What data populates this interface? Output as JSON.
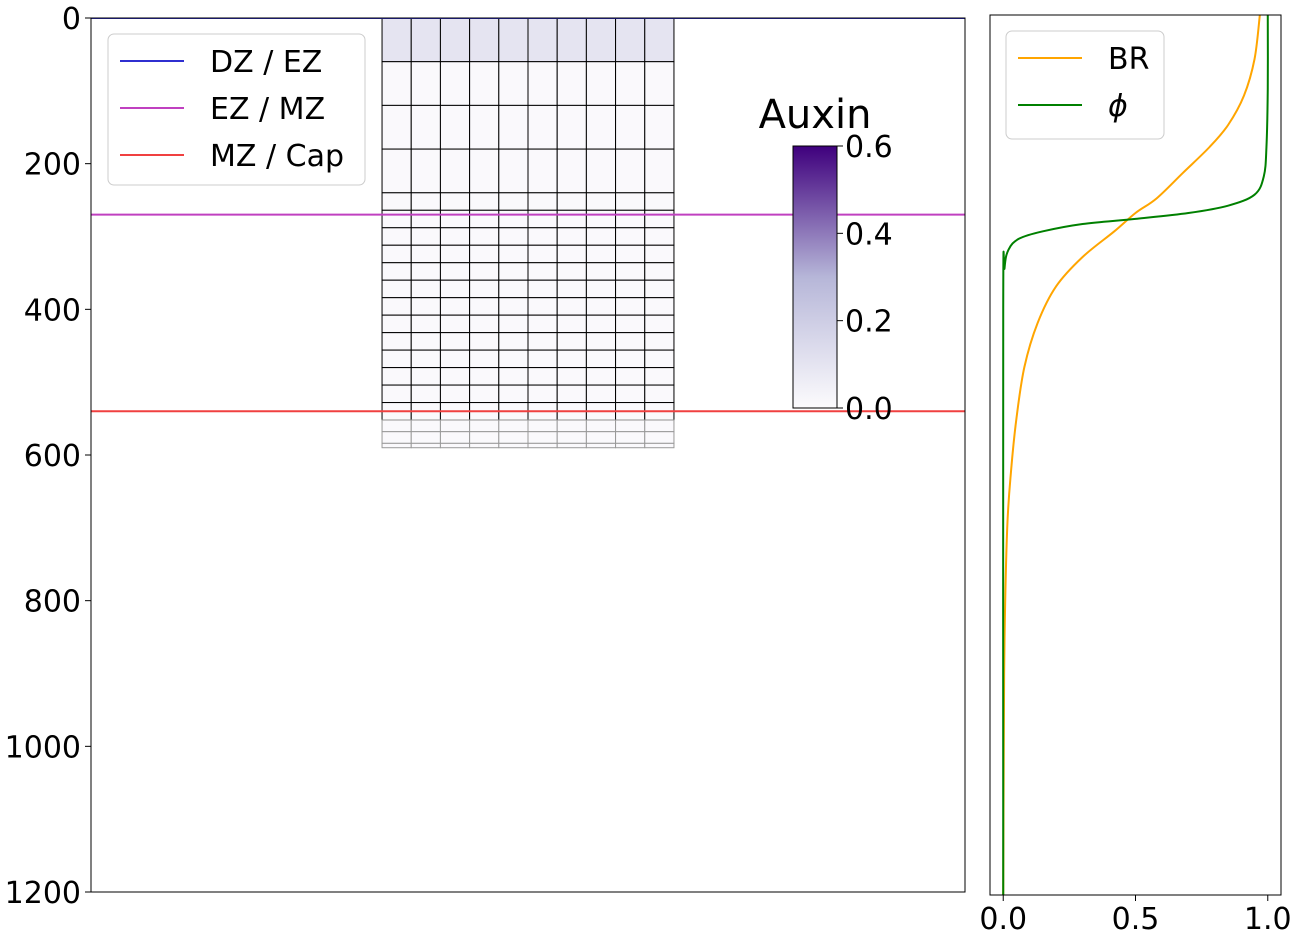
{
  "chart_data": [
    {
      "type": "heatmap",
      "title": "",
      "xlabel": "",
      "ylabel": "",
      "ylim": [
        1200,
        0
      ],
      "yticks": [
        "0",
        "200",
        "400",
        "600",
        "800",
        "1000",
        "1200"
      ],
      "x_axis_visible": false,
      "grid": false,
      "legend_position": "top-left",
      "boundaries": [
        {
          "name": "DZ / EZ",
          "y": 0,
          "color": "#2f2fd0"
        },
        {
          "name": "EZ / MZ",
          "y": 270,
          "color": "#c040c0"
        },
        {
          "name": "MZ / Cap",
          "y": 540,
          "color": "#f04040"
        }
      ],
      "cell_grid": {
        "columns": 10,
        "x_range": [
          0.333,
          0.667
        ],
        "row_edges_y": [
          0,
          60,
          120,
          180,
          240,
          264,
          288,
          312,
          336,
          360,
          384,
          408,
          432,
          456,
          480,
          504,
          528,
          552,
          568,
          584,
          590
        ],
        "row_auxin": [
          0.1,
          0.01,
          0.01,
          0.01,
          0.01,
          0.01,
          0.01,
          0.01,
          0.01,
          0.01,
          0.01,
          0.01,
          0.01,
          0.01,
          0.01,
          0.01,
          0.01,
          0.01,
          0.01,
          0.01
        ],
        "row_edge_colors": [
          "#000000",
          "#000000",
          "#000000",
          "#000000",
          "#000000",
          "#000000",
          "#000000",
          "#000000",
          "#000000",
          "#000000",
          "#000000",
          "#000000",
          "#000000",
          "#000000",
          "#000000",
          "#000000",
          "#000000",
          "#999999",
          "#999999",
          "#999999"
        ]
      },
      "colorbar": {
        "title": "Auxin",
        "min": 0.0,
        "max": 0.6,
        "ticks": [
          "0.0",
          "0.2",
          "0.4",
          "0.6"
        ],
        "colormap": "Purples",
        "low_color": "#fcfbfd",
        "mid_color": "#b6b6d8",
        "high_color": "#3f007d"
      }
    },
    {
      "type": "line",
      "title": "",
      "xlabel": "",
      "ylabel": "",
      "xlim": [
        -0.05,
        1.05
      ],
      "ylim": [
        1200,
        0
      ],
      "xticks": [
        "0.0",
        "0.5",
        "1.0"
      ],
      "y_axis_visible": false,
      "grid": false,
      "legend_position": "top-left",
      "series": [
        {
          "name": "BR",
          "color": "#ffa500",
          "points": [
            [
              0.97,
              0
            ],
            [
              0.95,
              60
            ],
            [
              0.91,
              110
            ],
            [
              0.85,
              150
            ],
            [
              0.78,
              180
            ],
            [
              0.68,
              215
            ],
            [
              0.58,
              250
            ],
            [
              0.5,
              270
            ],
            [
              0.42,
              295
            ],
            [
              0.3,
              330
            ],
            [
              0.2,
              370
            ],
            [
              0.13,
              420
            ],
            [
              0.08,
              480
            ],
            [
              0.05,
              550
            ],
            [
              0.03,
              620
            ],
            [
              0.015,
              700
            ],
            [
              0.005,
              850
            ],
            [
              0.002,
              1000
            ],
            [
              0.0,
              1200
            ]
          ]
        },
        {
          "name": "ϕ",
          "color": "#008000",
          "points": [
            [
              1.0,
              0
            ],
            [
              1.0,
              100
            ],
            [
              0.995,
              180
            ],
            [
              0.985,
              220
            ],
            [
              0.95,
              245
            ],
            [
              0.85,
              260
            ],
            [
              0.7,
              270
            ],
            [
              0.5,
              278
            ],
            [
              0.3,
              285
            ],
            [
              0.15,
              295
            ],
            [
              0.06,
              305
            ],
            [
              0.02,
              320
            ],
            [
              0.005,
              345
            ],
            [
              0.0,
              400
            ],
            [
              0.0,
              1200
            ]
          ]
        }
      ]
    }
  ]
}
